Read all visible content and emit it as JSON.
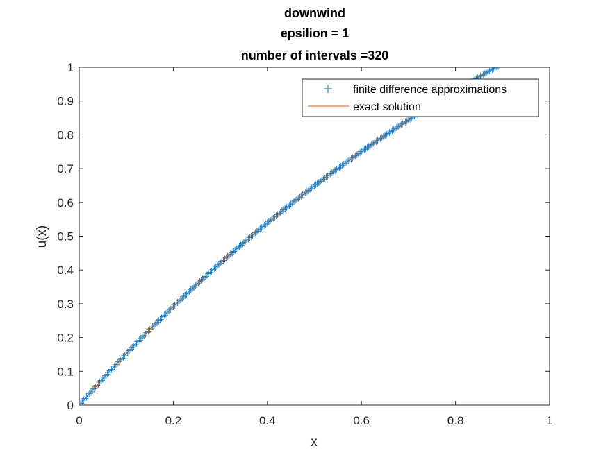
{
  "chart_data": {
    "type": "line",
    "title": [
      "downwind",
      "epsilion = 1",
      "number of intervals =320"
    ],
    "xlabel": "x",
    "ylabel": "u(x)",
    "xlim": [
      0,
      1
    ],
    "ylim": [
      0,
      1
    ],
    "xticks": [
      "0",
      "0.2",
      "0.4",
      "0.6",
      "0.8",
      "1"
    ],
    "yticks": [
      "0",
      "0.1",
      "0.2",
      "0.3",
      "0.4",
      "0.5",
      "0.6",
      "0.7",
      "0.8",
      "0.9",
      "1"
    ],
    "grid": false,
    "legend_position": "top-right",
    "x": [
      0,
      0.05,
      0.1,
      0.15,
      0.2,
      0.25,
      0.3,
      0.35,
      0.4,
      0.45,
      0.5,
      0.55,
      0.6,
      0.65,
      0.7,
      0.75,
      0.8,
      0.85,
      0.9,
      0.95,
      1
    ],
    "series": [
      {
        "name": "finite difference approximations",
        "marker": "+",
        "color": "#1f77b4",
        "values": [
          0,
          0.0775,
          0.1519,
          0.2232,
          0.2916,
          0.3573,
          0.4204,
          0.481,
          0.5392,
          0.5951,
          0.6489,
          0.7006,
          0.7503,
          0.7981,
          0.844,
          0.8882,
          0.9307,
          0.9717,
          1.011,
          1.0488,
          1.0852
        ]
      },
      {
        "name": "exact solution",
        "marker": "none",
        "color": "#d95319",
        "values": [
          0,
          0.0775,
          0.1519,
          0.2232,
          0.2916,
          0.3573,
          0.4204,
          0.481,
          0.5392,
          0.5951,
          0.6489,
          0.7006,
          0.7503,
          0.7981,
          0.844,
          0.8882,
          0.9307,
          0.9717,
          1.011,
          1.0488,
          1.0852
        ]
      }
    ]
  }
}
